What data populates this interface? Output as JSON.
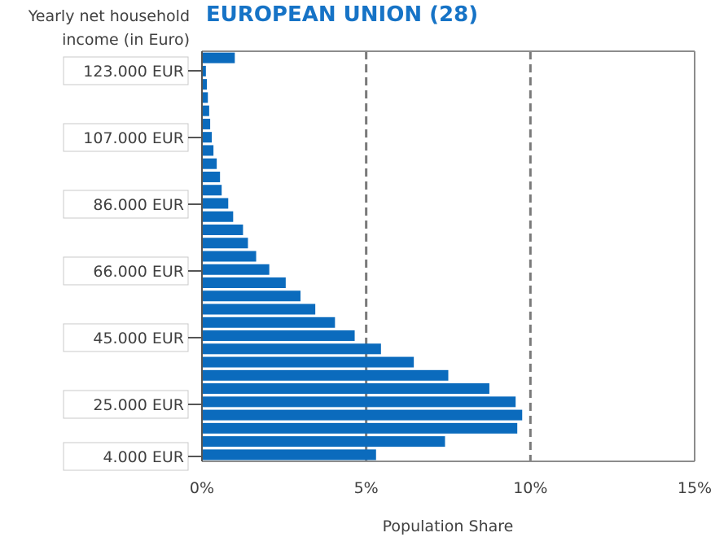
{
  "chart_data": {
    "type": "bar",
    "orientation": "horizontal",
    "title": "EUROPEAN UNION (28)",
    "ylabel_lines": [
      "Yearly net household",
      "income (in Euro)"
    ],
    "xlabel": "Population Share",
    "x_ticks": [
      "0%",
      "5%",
      "10%",
      "15%"
    ],
    "xlim": [
      0,
      15
    ],
    "y_tick_labels": [
      "123.000 EUR",
      "107.000 EUR",
      "86.000 EUR",
      "66.000 EUR",
      "45.000 EUR",
      "25.000 EUR",
      "4.000 EUR"
    ],
    "reference_lines_x": [
      5,
      10
    ],
    "bar_color": "#0b6bbd",
    "values_bottom_to_top": [
      5.3,
      7.4,
      9.6,
      9.75,
      9.55,
      8.75,
      7.5,
      6.45,
      5.45,
      4.65,
      4.05,
      3.45,
      3.0,
      2.55,
      2.05,
      1.65,
      1.4,
      1.25,
      0.95,
      0.8,
      0.6,
      0.55,
      0.45,
      0.35,
      0.3,
      0.25,
      0.22,
      0.18,
      0.15,
      0.12,
      1.0
    ]
  }
}
